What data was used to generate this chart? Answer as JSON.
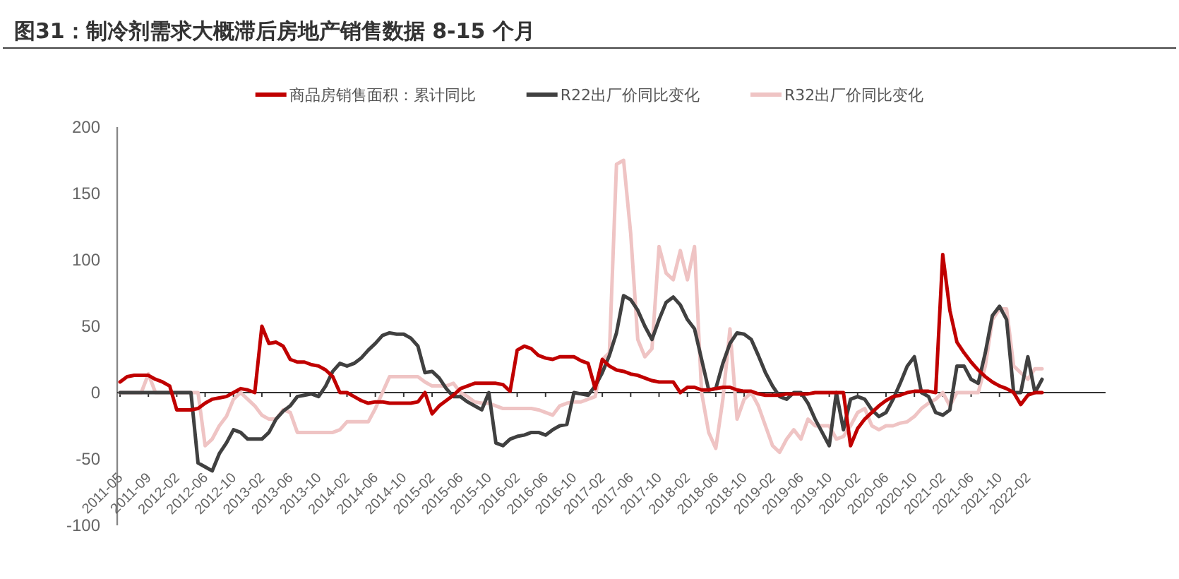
{
  "chart_data": {
    "type": "line",
    "title": "图31：制冷剂需求大概滞后房地产销售数据 8-15 个月",
    "categories": [
      "2011-05",
      null,
      null,
      null,
      "2011-09",
      null,
      null,
      null,
      "2012-02",
      null,
      null,
      null,
      "2012-06",
      null,
      null,
      null,
      "2012-10",
      null,
      null,
      null,
      "2013-02",
      null,
      null,
      null,
      "2013-06",
      null,
      null,
      null,
      "2013-10",
      null,
      null,
      null,
      "2014-02",
      null,
      null,
      null,
      "2014-06",
      null,
      null,
      null,
      "2014-10",
      null,
      null,
      null,
      "2015-02",
      null,
      null,
      null,
      "2015-06",
      null,
      null,
      null,
      "2015-10",
      null,
      null,
      null,
      "2016-02",
      null,
      null,
      null,
      "2016-06",
      null,
      null,
      null,
      "2016-10",
      null,
      null,
      null,
      "2017-02",
      null,
      null,
      null,
      "2017-06",
      null,
      null,
      null,
      "2017-10",
      null,
      null,
      null,
      "2018-02",
      null,
      null,
      null,
      "2018-06",
      null,
      null,
      null,
      "2018-10",
      null,
      null,
      null,
      "2019-02",
      null,
      null,
      null,
      "2019-06",
      null,
      null,
      null,
      "2019-10",
      null,
      null,
      null,
      "2020-02",
      null,
      null,
      null,
      "2020-06",
      null,
      null,
      null,
      "2020-10",
      null,
      null,
      null,
      "2021-02",
      null,
      null,
      null,
      "2021-06",
      null,
      null,
      null,
      "2021-10",
      null,
      null,
      null,
      "2022-02",
      null,
      null
    ],
    "series": [
      {
        "name": "商品房销售面积：累计同比",
        "color": "#c00000",
        "values": [
          8,
          12,
          13,
          13,
          13,
          10,
          8,
          5,
          -13,
          -13,
          -13,
          -12,
          -8,
          -5,
          -4,
          -3,
          0,
          3,
          2,
          0,
          50,
          37,
          38,
          35,
          25,
          23,
          23,
          21,
          20,
          17,
          12,
          0,
          0,
          -3,
          -6,
          -8,
          -7,
          -7,
          -8,
          -8,
          -8,
          -8,
          -7,
          0,
          -16,
          -10,
          -6,
          -2,
          3,
          5,
          7,
          7,
          7,
          7,
          6,
          1,
          32,
          35,
          33,
          28,
          26,
          25,
          27,
          27,
          27,
          24,
          22,
          3,
          25,
          20,
          17,
          16,
          14,
          13,
          11,
          9,
          8,
          8,
          8,
          0,
          4,
          4,
          2,
          2,
          3,
          4,
          4,
          2,
          1,
          1,
          -1,
          -2,
          -2,
          -2,
          -1,
          -1,
          -1,
          -1,
          0,
          0,
          0,
          0,
          0,
          -40,
          -27,
          -20,
          -15,
          -10,
          -6,
          -3,
          -2,
          0,
          1,
          1,
          1,
          0,
          104,
          62,
          38,
          30,
          23,
          17,
          12,
          8,
          5,
          3,
          0,
          -9,
          -2,
          0,
          0
        ]
      },
      {
        "name": "R22出厂价同比变化",
        "color": "#404040",
        "values": [
          0,
          0,
          0,
          0,
          0,
          0,
          0,
          0,
          0,
          0,
          0,
          -53,
          -56,
          -59,
          -46,
          -38,
          -28,
          -30,
          -35,
          -35,
          -35,
          -30,
          -20,
          -14,
          -10,
          -3,
          -2,
          -1,
          -3,
          5,
          16,
          22,
          20,
          22,
          26,
          32,
          37,
          43,
          45,
          44,
          44,
          41,
          35,
          15,
          16,
          11,
          3,
          -3,
          -3,
          -7,
          -10,
          -13,
          0,
          -38,
          -40,
          -35,
          -33,
          -32,
          -30,
          -30,
          -32,
          -28,
          -25,
          -24,
          0,
          -1,
          -2,
          5,
          15,
          28,
          45,
          73,
          70,
          62,
          50,
          40,
          55,
          68,
          72,
          66,
          55,
          48,
          25,
          2,
          3,
          22,
          37,
          45,
          44,
          40,
          28,
          15,
          5,
          -3,
          -5,
          0,
          0,
          -8,
          -20,
          -30,
          -40,
          0,
          -28,
          -5,
          -3,
          -5,
          -13,
          -18,
          -15,
          -5,
          7,
          20,
          27,
          0,
          -3,
          -15,
          -17,
          -13,
          20,
          20,
          10,
          7,
          30,
          58,
          65,
          55,
          0,
          0,
          27,
          0,
          10
        ]
      },
      {
        "name": "R32出厂价同比变化",
        "color": "#efc4c4",
        "values": [
          0,
          0,
          0,
          0,
          14,
          0,
          0,
          0,
          0,
          0,
          0,
          0,
          -40,
          -35,
          -25,
          -18,
          -5,
          0,
          -5,
          -10,
          -17,
          -20,
          -20,
          -13,
          -15,
          -30,
          -30,
          -30,
          -30,
          -30,
          -30,
          -28,
          -22,
          -22,
          -22,
          -22,
          -12,
          0,
          12,
          12,
          12,
          12,
          12,
          8,
          5,
          5,
          5,
          7,
          0,
          -3,
          -7,
          -8,
          -8,
          -10,
          -12,
          -12,
          -12,
          -12,
          -12,
          -13,
          -15,
          -17,
          -10,
          -8,
          -7,
          -7,
          -5,
          -3,
          25,
          30,
          172,
          175,
          120,
          40,
          27,
          33,
          110,
          90,
          85,
          107,
          85,
          110,
          0,
          -30,
          -42,
          -5,
          48,
          -20,
          -5,
          0,
          -10,
          -25,
          -40,
          -45,
          -35,
          -28,
          -35,
          -20,
          -25,
          -25,
          -25,
          -35,
          -33,
          -25,
          -15,
          -12,
          -25,
          -28,
          -25,
          -25,
          -23,
          -22,
          -18,
          -12,
          -8,
          -5,
          0,
          -10,
          0,
          0,
          0,
          0,
          20,
          55,
          63,
          63,
          20,
          15,
          10,
          18,
          18
        ]
      }
    ],
    "ref_lines": [
      {
        "axis": "y",
        "value": 0,
        "color": "#333333"
      }
    ],
    "ylim": [
      -100,
      200
    ],
    "yticks": [
      -100,
      -50,
      0,
      50,
      100,
      150,
      200
    ],
    "legend": "top",
    "grid": false
  }
}
